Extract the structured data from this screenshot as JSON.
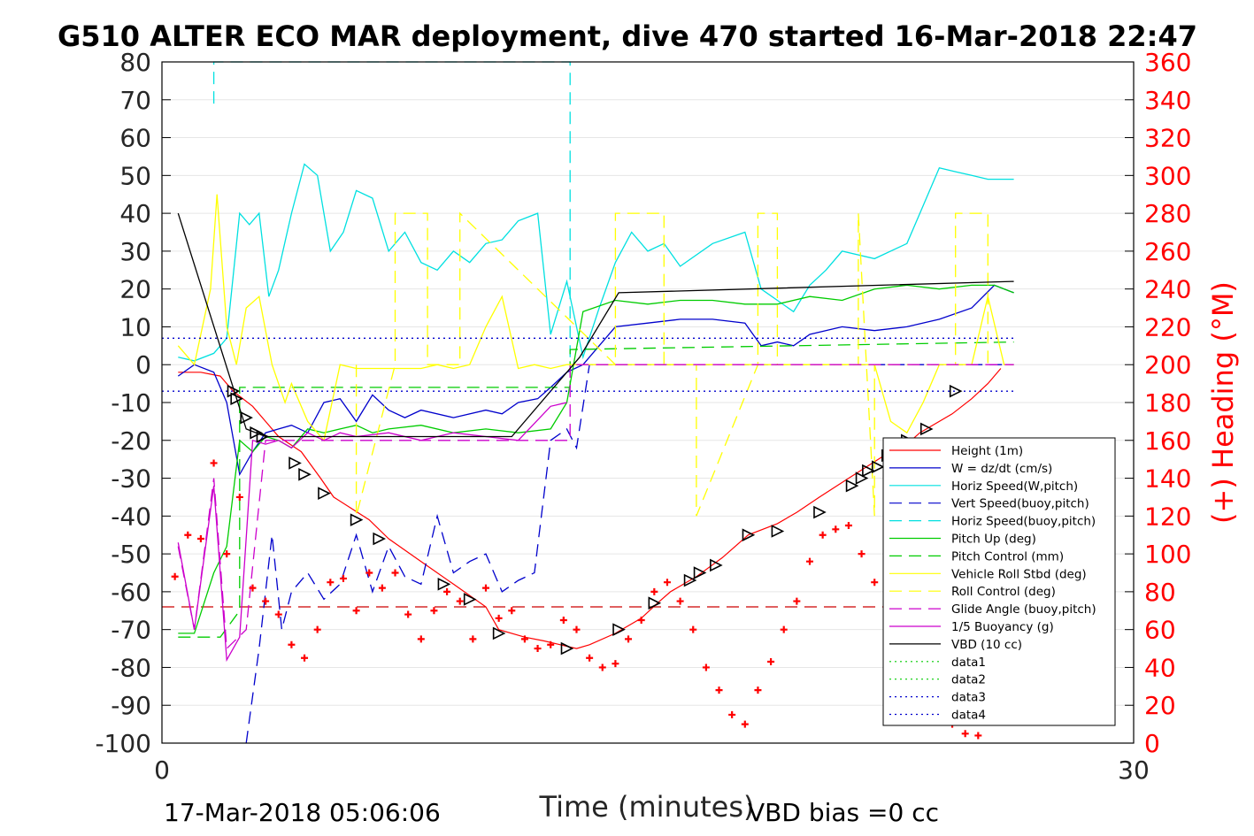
{
  "chart_data": {
    "type": "line",
    "title": "G510 ALTER ECO MAR deployment, dive 470 started 16-Mar-2018 22:47",
    "xlabel": "Time (minutes)",
    "ylabel": "",
    "y2label": "(+) Heading (°M)",
    "xlim": [
      0,
      30
    ],
    "ylim": [
      -100,
      80
    ],
    "y2lim": [
      0,
      360
    ],
    "x_ticks": [
      "0",
      "30"
    ],
    "y_ticks": [
      "80",
      "70",
      "60",
      "50",
      "40",
      "30",
      "20",
      "10",
      "0",
      "-10",
      "-20",
      "-30",
      "-40",
      "-50",
      "-60",
      "-70",
      "-80",
      "-90",
      "-100"
    ],
    "y2_ticks": [
      "360",
      "340",
      "320",
      "300",
      "280",
      "260",
      "240",
      "220",
      "200",
      "180",
      "160",
      "140",
      "120",
      "100",
      "80",
      "60",
      "40",
      "20",
      "0"
    ],
    "footer_left": "17-Mar-2018 05:06:06",
    "footer_right": "VBD bias =0 cc",
    "grid": "horizontal",
    "legend_position": "lower-right",
    "series": [
      {
        "name": "Height (1m)",
        "color": "#ff0000",
        "style": "solid",
        "x": [
          0.5,
          1.2,
          1.8,
          2.2,
          2.8,
          3.2,
          3.6,
          4.3,
          4.9,
          5.3,
          6.4,
          7.0,
          8.0,
          9.0,
          10.0,
          10.4,
          11.2,
          11.8,
          12.3,
          12.8,
          13.2,
          14.0,
          14.8,
          15.3,
          15.7,
          16.5,
          17.3,
          18.1,
          19.0,
          19.6,
          20.3,
          21.2,
          22.3,
          23.0,
          23.4,
          24.4,
          25.0,
          25.5,
          25.9
        ],
        "y": [
          -2,
          -2,
          -3,
          -7,
          -11,
          -15,
          -19,
          -23,
          -30,
          -35,
          -41,
          -46,
          -52,
          -58,
          -64,
          -70,
          -72,
          -73,
          -74,
          -75,
          -74,
          -71,
          -67,
          -63,
          -60,
          -56,
          -51,
          -45,
          -42,
          -39,
          -35,
          -30,
          -24,
          -21,
          -18,
          -13,
          -9,
          -5,
          -1
        ]
      },
      {
        "name": "W = dz/dt (cm/s)",
        "color": "#0000cc",
        "style": "solid",
        "x": [
          0.5,
          1.0,
          1.6,
          2.0,
          2.4,
          2.8,
          3.2,
          3.6,
          4.0,
          4.5,
          5.0,
          5.5,
          6.0,
          6.5,
          7.0,
          7.5,
          8.0,
          9.0,
          10.0,
          10.5,
          11.0,
          11.6,
          12.0,
          12.5,
          13.0,
          14.0,
          15.0,
          16.0,
          17.0,
          18.0,
          18.5,
          19.0,
          19.5,
          20.0,
          21.0,
          22.0,
          23.0,
          24.0,
          25.0,
          25.7,
          26.3
        ],
        "y": [
          -3,
          0,
          -2,
          -10,
          -29,
          -23,
          -18,
          -17,
          -16,
          -18,
          -10,
          -9,
          -15,
          -8,
          -12,
          -14,
          -12,
          -14,
          -12,
          -13,
          -10,
          -9,
          -6,
          -2,
          0,
          10,
          11,
          12,
          12,
          11,
          5,
          6,
          5,
          8,
          10,
          9,
          10,
          12,
          15,
          21,
          19
        ]
      },
      {
        "name": "Horiz Speed(W,pitch)",
        "color": "#00e0e0",
        "style": "solid",
        "x": [
          0.5,
          1.0,
          1.6,
          2.0,
          2.4,
          2.7,
          3.0,
          3.3,
          3.6,
          4.0,
          4.4,
          4.8,
          5.2,
          5.6,
          6.0,
          6.5,
          7.0,
          7.5,
          8.0,
          8.5,
          9.0,
          9.5,
          10.0,
          10.5,
          11.0,
          11.6,
          12.0,
          12.5,
          13.0,
          13.5,
          14.0,
          14.5,
          15.0,
          15.5,
          16.0,
          17.0,
          18.0,
          18.5,
          19.0,
          19.5,
          20.0,
          20.5,
          21.0,
          22.0,
          23.0,
          23.5,
          24.0,
          24.5,
          25.0,
          25.5,
          26.3
        ],
        "y": [
          2,
          1,
          3,
          7,
          40,
          37,
          40,
          18,
          25,
          40,
          53,
          50,
          30,
          35,
          46,
          44,
          30,
          35,
          27,
          25,
          30,
          27,
          32,
          33,
          38,
          40,
          8,
          22,
          2,
          15,
          27,
          35,
          30,
          32,
          26,
          32,
          35,
          20,
          17,
          14,
          21,
          25,
          30,
          28,
          32,
          42,
          52,
          51,
          50,
          49,
          49
        ]
      },
      {
        "name": "Vert Speed(buoy,pitch)",
        "color": "#0000cc",
        "style": "dash",
        "x": [
          2.6,
          3.0,
          3.4,
          3.7,
          4.0,
          4.5,
          5.0,
          5.5,
          6.0,
          6.5,
          7.0,
          7.5,
          8.0,
          8.5,
          9.0,
          9.5,
          10.0,
          10.5,
          11.0,
          11.5,
          12.0,
          12.5,
          12.8,
          13.2,
          14.0,
          26.3
        ],
        "y": [
          -100,
          -75,
          -45,
          -70,
          -60,
          -55,
          -62,
          -58,
          -45,
          -60,
          -48,
          -56,
          -58,
          -40,
          -55,
          -52,
          -50,
          -60,
          -57,
          -55,
          -20,
          -17,
          -22,
          0,
          0,
          0
        ]
      },
      {
        "name": "Horiz Speed(buoy,pitch)",
        "color": "#00e0e0",
        "style": "dash",
        "x": [
          1.6,
          1.6,
          12.6,
          12.6
        ],
        "y": [
          69,
          80,
          80,
          2
        ]
      },
      {
        "name": "Pitch Up (deg)",
        "color": "#00cc00",
        "style": "solid",
        "x": [
          0.5,
          1.0,
          1.6,
          2.0,
          2.4,
          2.8,
          3.2,
          3.6,
          4.0,
          4.5,
          5.0,
          5.5,
          6.0,
          6.5,
          7.0,
          8.0,
          9.0,
          10.0,
          11.0,
          12.0,
          12.5,
          13.0,
          14.0,
          15.0,
          16.0,
          17.0,
          18.0,
          19.0,
          20.0,
          21.0,
          22.0,
          23.0,
          24.0,
          25.0,
          25.7,
          26.3
        ],
        "y": [
          -71,
          -71,
          -55,
          -48,
          -20,
          -23,
          -19,
          -20,
          -22,
          -17,
          -18,
          -17,
          -16,
          -18,
          -17,
          -16,
          -18,
          -17,
          -18,
          -17,
          -10,
          14,
          17,
          16,
          17,
          17,
          16,
          16,
          18,
          17,
          20,
          21,
          20,
          21,
          21,
          19
        ]
      },
      {
        "name": "Pitch Control (mm)",
        "color": "#00cc00",
        "style": "dash",
        "x": [
          0.5,
          1.0,
          1.8,
          2.4,
          2.4,
          12.6,
          12.6,
          26.3
        ],
        "y": [
          -72,
          -72,
          -72,
          -65,
          -6,
          -6,
          4,
          6
        ]
      },
      {
        "name": "Vehicle Roll Stbd (deg)",
        "color": "#ffff00",
        "style": "solid",
        "x": [
          0.5,
          1.0,
          1.5,
          1.7,
          2.0,
          2.3,
          2.6,
          3.0,
          3.4,
          3.8,
          4.0,
          4.5,
          5.0,
          5.5,
          6.0,
          7.0,
          8.0,
          8.5,
          9.0,
          9.5,
          10.0,
          10.5,
          11.0,
          11.5,
          12.0,
          12.5,
          13.0,
          14.0,
          15.0,
          16.0,
          17.0,
          18.0,
          19.0,
          20.0,
          21.0,
          22.0,
          22.5,
          23.0,
          23.5,
          24.0,
          25.0,
          25.5,
          26.0,
          26.3
        ],
        "y": [
          5,
          0,
          20,
          45,
          10,
          0,
          15,
          18,
          0,
          -10,
          -5,
          -15,
          -20,
          0,
          -1,
          -1,
          -1,
          0,
          -1,
          0,
          10,
          18,
          -1,
          0,
          -1,
          0,
          0,
          0,
          0,
          0,
          0,
          0,
          0,
          0,
          0,
          0,
          -15,
          -18,
          -10,
          0,
          0,
          18,
          0,
          0
        ]
      },
      {
        "name": "Roll Control (deg)",
        "color": "#ffff00",
        "style": "dash",
        "x": [
          6.0,
          6.0,
          7.2,
          7.2,
          8.2,
          8.2,
          9.2,
          9.2,
          14.0,
          14.0,
          15.5,
          15.5,
          16.5,
          16.5,
          18.4,
          18.4,
          19.0,
          19.0,
          21.5,
          21.5,
          22.0,
          22.0,
          24.5,
          24.5,
          25.5,
          25.5
        ],
        "y": [
          0,
          -40,
          0,
          40,
          40,
          0,
          0,
          40,
          0,
          40,
          40,
          0,
          0,
          -40,
          0,
          40,
          40,
          0,
          0,
          40,
          -40,
          0,
          0,
          40,
          40,
          0
        ]
      },
      {
        "name": "Glide Angle (buoy,pitch)",
        "color": "#cc00cc",
        "style": "dash",
        "x": [
          0.5,
          1.0,
          1.6,
          2.0,
          2.6,
          3.2,
          3.6,
          4.0,
          12.6,
          12.6,
          26.3
        ],
        "y": [
          -48,
          -70,
          -30,
          -75,
          -70,
          -20,
          -20,
          -20,
          -20,
          0,
          0
        ]
      },
      {
        "name": "1/5 Buoyancy (g)",
        "color": "#cc00cc",
        "style": "solid",
        "x": [
          0.5,
          1.0,
          1.6,
          2.0,
          2.4,
          2.8,
          3.2,
          3.6,
          4.0,
          4.5,
          5.0,
          5.5,
          6.0,
          7.0,
          8.0,
          9.0,
          10.0,
          11.0,
          12.0,
          12.5
        ],
        "y": [
          -47,
          -70,
          -32,
          -78,
          -72,
          -20,
          -21,
          -20,
          -22,
          -18,
          -20,
          -18,
          -19,
          -18,
          -20,
          -18,
          -19,
          -20,
          -11,
          -10
        ]
      },
      {
        "name": "VBD (10 cc)",
        "color": "#000000",
        "style": "solid",
        "x": [
          0.5,
          2.6,
          3.2,
          10.8,
          12.9,
          14.1,
          26.3
        ],
        "y": [
          40,
          -17,
          -19,
          -19,
          2,
          19,
          22
        ]
      },
      {
        "name": "data1",
        "color": "#00cc00",
        "style": "dot",
        "x": [],
        "y": []
      },
      {
        "name": "data2",
        "color": "#00cc00",
        "style": "dot",
        "x": [],
        "y": []
      },
      {
        "name": "data3",
        "color": "#0000cc",
        "style": "dot",
        "x": [
          0,
          26.3
        ],
        "y": [
          7,
          7
        ]
      },
      {
        "name": "data4",
        "color": "#0000cc",
        "style": "dot",
        "x": [
          0,
          26.3
        ],
        "y": [
          -7,
          -7
        ]
      }
    ],
    "reference_lines": [
      {
        "color": "#cc0000",
        "style": "dash",
        "y": -64,
        "x": [
          0,
          26.3
        ]
      }
    ],
    "heading_points": {
      "color": "#ff0000",
      "x": [
        0.4,
        0.8,
        1.2,
        1.6,
        2.0,
        2.4,
        2.8,
        3.2,
        3.6,
        4.0,
        4.4,
        4.8,
        5.2,
        5.6,
        6.0,
        6.4,
        6.8,
        7.2,
        7.6,
        8.0,
        8.4,
        8.8,
        9.2,
        9.6,
        10.0,
        10.4,
        10.8,
        11.2,
        11.6,
        12.0,
        12.4,
        12.8,
        13.2,
        13.6,
        14.0,
        14.4,
        14.8,
        15.2,
        15.6,
        16.0,
        16.4,
        16.8,
        17.2,
        17.6,
        18.0,
        18.4,
        18.8,
        19.2,
        19.6,
        20.0,
        20.4,
        20.8,
        21.2,
        21.6,
        22.0,
        22.4,
        22.8,
        23.2,
        23.6,
        24.0,
        24.4,
        24.8,
        25.2
      ],
      "y": [
        88,
        110,
        108,
        148,
        100,
        130,
        82,
        75,
        68,
        52,
        45,
        60,
        85,
        87,
        70,
        90,
        82,
        90,
        68,
        55,
        70,
        80,
        75,
        55,
        82,
        66,
        70,
        55,
        50,
        52,
        65,
        60,
        45,
        40,
        42,
        55,
        65,
        80,
        85,
        75,
        60,
        40,
        28,
        15,
        10,
        28,
        43,
        60,
        75,
        96,
        110,
        113,
        115,
        100,
        85,
        70,
        56,
        40,
        28,
        18,
        10,
        5,
        4
      ]
    },
    "markers": {
      "color": "#000000",
      "x": [
        2.2,
        2.3,
        2.6,
        2.9,
        3.1,
        4.1,
        4.4,
        5.0,
        6.0,
        6.7,
        8.7,
        9.5,
        10.4,
        12.5,
        14.1,
        15.2,
        16.3,
        16.6,
        17.1,
        18.1,
        19.0,
        20.3,
        21.3,
        21.6,
        21.8,
        22.1,
        22.4,
        23.0,
        23.6,
        24.5
      ],
      "y": [
        -7,
        -9,
        -14,
        -18,
        -19,
        -26,
        -29,
        -34,
        -41,
        -46,
        -58,
        -62,
        -71,
        -75,
        -70,
        -63,
        -57,
        -55,
        -53,
        -45,
        -44,
        -39,
        -32,
        -30,
        -28,
        -27,
        -24,
        -20,
        -17,
        -7
      ]
    }
  }
}
